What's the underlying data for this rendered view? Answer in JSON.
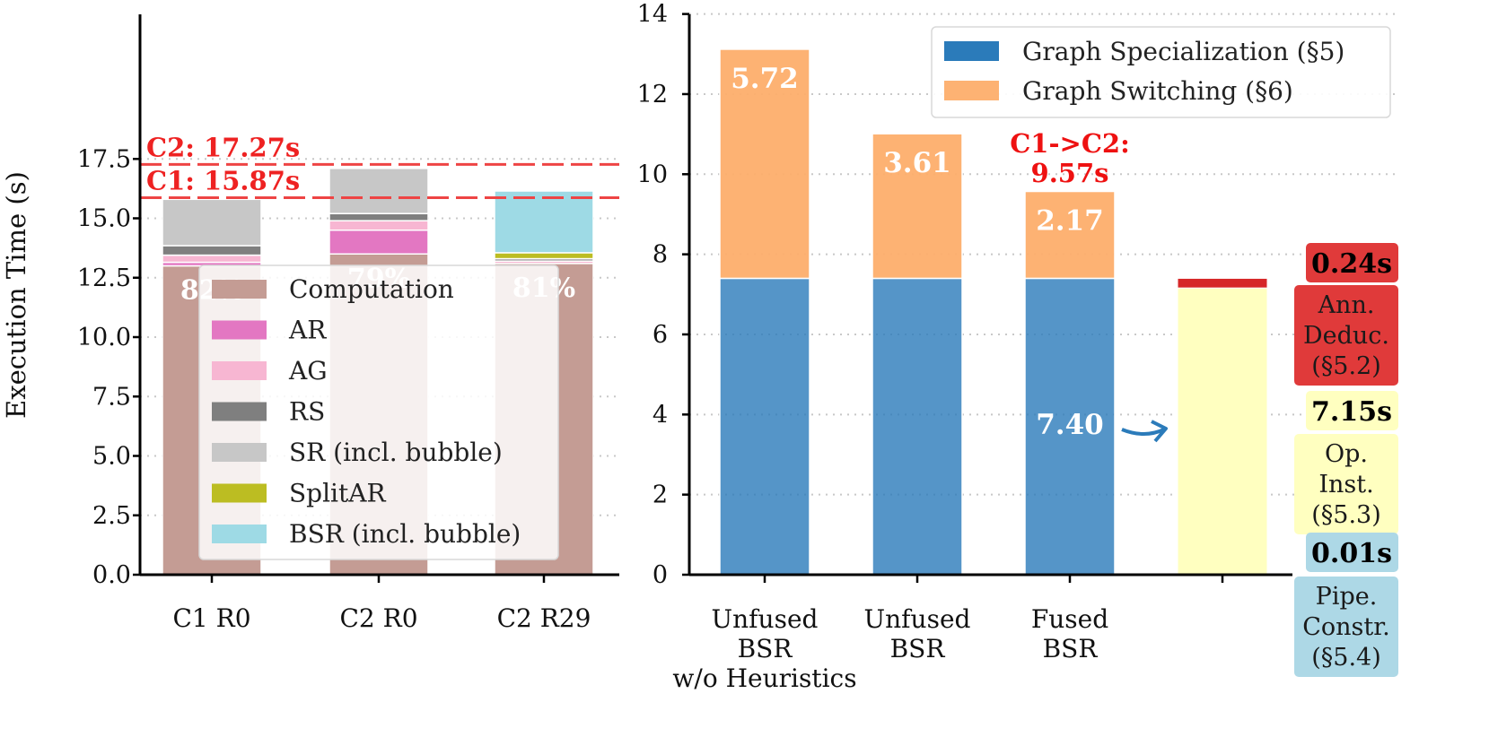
{
  "chart_data": [
    {
      "type": "bar",
      "stacked": true,
      "ylabel": "Execution Time (s)",
      "ylim": [
        0,
        19.7
      ],
      "yticks": [
        "0.0",
        "2.5",
        "5.0",
        "7.5",
        "10.0",
        "12.5",
        "15.0",
        "17.5"
      ],
      "categories": [
        "C1 R0",
        "C2 R0",
        "C2 R29"
      ],
      "series": [
        {
          "name": "Computation",
          "color": "#c49c94",
          "values": [
            13.0,
            13.5,
            13.1
          ]
        },
        {
          "name": "AR",
          "color": "#e377c2",
          "values": [
            0.15,
            1.0,
            0.0
          ]
        },
        {
          "name": "AG",
          "color": "#f7b6d2",
          "values": [
            0.3,
            0.4,
            0.1
          ]
        },
        {
          "name": "RS",
          "color": "#7f7f7f",
          "values": [
            0.4,
            0.3,
            0.1
          ]
        },
        {
          "name": "SR (incl. bubble)",
          "color": "#c7c7c7",
          "values": [
            1.95,
            1.9,
            0.0
          ]
        },
        {
          "name": "SplitAR",
          "color": "#bcbd22",
          "values": [
            0.0,
            0.0,
            0.25
          ]
        },
        {
          "name": "BSR (incl. bubble)",
          "color": "#9edae5",
          "values": [
            0.0,
            0.0,
            2.6
          ]
        }
      ],
      "percent_labels": [
        "82%",
        "79%",
        "81%"
      ],
      "hlines": [
        {
          "label": "C2: 17.27s",
          "value": 17.27,
          "color": "#ee4444"
        },
        {
          "label": "C1: 15.87s",
          "value": 15.87,
          "color": "#ee4444"
        }
      ],
      "legend_position": "center"
    },
    {
      "type": "bar",
      "stacked": true,
      "ylim": [
        0,
        14
      ],
      "yticks": [
        "0",
        "2",
        "4",
        "6",
        "8",
        "10",
        "12",
        "14"
      ],
      "categories": [
        [
          "Unfused",
          "BSR",
          "w/o Heuristics"
        ],
        [
          "Unfused",
          "BSR"
        ],
        [
          "Fused",
          "BSR"
        ],
        [
          ""
        ]
      ],
      "series": [
        {
          "name": "Graph Specialization (§5)",
          "color": "#2b7bba",
          "values": [
            7.4,
            7.4,
            7.4,
            null
          ]
        },
        {
          "name": "Graph Switching (§6)",
          "color": "#fdae6b",
          "values": [
            5.72,
            3.61,
            2.17,
            null
          ]
        }
      ],
      "bar_labels": [
        "5.72",
        "3.61",
        "2.17"
      ],
      "annotation": {
        "line1": "C1->C2:",
        "line2": "9.57s"
      },
      "arrow_label": "7.40",
      "breakdown": [
        {
          "name": "Pipe. Constr. (§5.4)",
          "value": 0.01,
          "value_label": "0.01s",
          "lines": [
            "Pipe.",
            "Constr.",
            "(§5.4)"
          ],
          "color": "#add8e6",
          "box_color": "#add8e6"
        },
        {
          "name": "Op. Inst. (§5.3)",
          "value": 7.15,
          "value_label": "7.15s",
          "lines": [
            "Op.",
            "Inst.",
            "(§5.3)"
          ],
          "color": "#ffffc0",
          "box_color": "#ffffc0"
        },
        {
          "name": "Ann. Deduc. (§5.2)",
          "value": 0.24,
          "value_label": "0.24s",
          "lines": [
            "Ann.",
            "Deduc.",
            "(§5.2)"
          ],
          "color": "#d62728",
          "box_color": "#e03a3a"
        }
      ],
      "legend_position": "top-right"
    }
  ]
}
